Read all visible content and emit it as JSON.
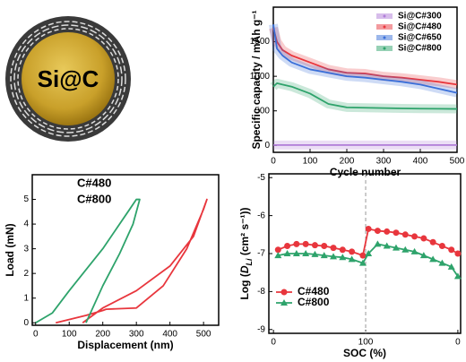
{
  "schematic": {
    "label": "Si@C"
  },
  "chart_data": [
    {
      "type": "line",
      "xlabel": "Cycle number",
      "ylabel": "Specific capacity / mAh g⁻¹",
      "xlim": [
        0,
        500
      ],
      "ylim": [
        -100,
        2000
      ],
      "xticks": [
        0,
        100,
        200,
        300,
        400,
        500
      ],
      "yticks": [
        0,
        500,
        1000,
        1500
      ],
      "legend": "upper right",
      "bands": true,
      "series": [
        {
          "name": "Si@C#300",
          "color": "#b07cd8",
          "x": [
            0,
            10,
            25,
            50,
            100,
            150,
            200,
            250,
            300,
            350,
            400,
            450,
            500
          ],
          "values": [
            5,
            5,
            5,
            5,
            5,
            5,
            5,
            5,
            5,
            5,
            5,
            5,
            5
          ]
        },
        {
          "name": "Si@C#480",
          "color": "#e8363d",
          "x": [
            0,
            10,
            25,
            50,
            100,
            150,
            200,
            250,
            300,
            350,
            400,
            450,
            500
          ],
          "values": [
            1700,
            1500,
            1380,
            1300,
            1200,
            1100,
            1050,
            1040,
            1000,
            980,
            950,
            920,
            880
          ]
        },
        {
          "name": "Si@C#650",
          "color": "#3a6fd8",
          "x": [
            0,
            10,
            25,
            50,
            100,
            150,
            200,
            250,
            300,
            350,
            400,
            450,
            500
          ],
          "values": [
            1750,
            1400,
            1300,
            1200,
            1100,
            1050,
            1000,
            980,
            950,
            920,
            880,
            820,
            760
          ]
        },
        {
          "name": "Si@C#800",
          "color": "#2ea36b",
          "x": [
            0,
            10,
            25,
            50,
            100,
            150,
            200,
            250,
            300,
            350,
            400,
            450,
            500
          ],
          "values": [
            850,
            900,
            880,
            850,
            750,
            600,
            550,
            545,
            540,
            535,
            532,
            530,
            528
          ]
        }
      ]
    },
    {
      "type": "line",
      "xlabel": "Displacement (nm)",
      "ylabel": "Load (mN)",
      "xlim": [
        -10,
        545
      ],
      "ylim": [
        -0.1,
        6
      ],
      "xticks": [
        0,
        100,
        200,
        300,
        400,
        500
      ],
      "yticks": [
        0,
        1,
        2,
        3,
        4,
        5
      ],
      "legend": "upper left",
      "legend_markers": false,
      "series": [
        {
          "name": "C#480",
          "color": "#e8363d",
          "x": [
            60,
            150,
            200,
            210,
            300,
            380,
            450,
            500,
            510,
            470,
            400,
            300,
            200,
            150,
            140
          ],
          "values": [
            0,
            0.3,
            0.5,
            0.55,
            0.6,
            1.5,
            3,
            4.6,
            5,
            3.5,
            2.3,
            1.3,
            0.6,
            0.1,
            0
          ]
        },
        {
          "name": "C#800",
          "color": "#2ea36b",
          "x": [
            0,
            50,
            100,
            200,
            280,
            300,
            310,
            290,
            250,
            200,
            160,
            150
          ],
          "values": [
            0,
            0.4,
            1.3,
            3,
            4.6,
            5,
            5,
            4,
            2.8,
            1.5,
            0.3,
            0
          ]
        }
      ]
    },
    {
      "type": "line",
      "xlabel": "SOC (%)",
      "ylabel_parts": [
        "Log (",
        "D",
        "Li",
        " (cm² s⁻¹))"
      ],
      "xlim": [
        -5,
        203
      ],
      "ylim": [
        -9.1,
        -4.9
      ],
      "xticks": [
        0,
        100,
        {
          "value": 200,
          "label": "0"
        }
      ],
      "yticks": [
        -9,
        -8,
        -7,
        -6,
        -5
      ],
      "vline": 100,
      "legend": "lower left",
      "series": [
        {
          "name": "C#480",
          "color": "#e8363d",
          "marker": "circle",
          "x": [
            5,
            15,
            25,
            35,
            45,
            55,
            65,
            75,
            85,
            97,
            103,
            113,
            123,
            133,
            143,
            153,
            163,
            173,
            183,
            193,
            200
          ],
          "values": [
            -6.9,
            -6.8,
            -6.75,
            -6.75,
            -6.78,
            -6.8,
            -6.85,
            -6.9,
            -6.95,
            -7.05,
            -6.35,
            -6.4,
            -6.42,
            -6.45,
            -6.5,
            -6.55,
            -6.6,
            -6.7,
            -6.8,
            -6.9,
            -7.0
          ]
        },
        {
          "name": "C#800",
          "color": "#2ea36b",
          "marker": "triangle",
          "x": [
            5,
            15,
            25,
            35,
            45,
            55,
            65,
            75,
            85,
            97,
            103,
            113,
            123,
            133,
            143,
            153,
            163,
            173,
            183,
            193,
            200
          ],
          "values": [
            -7.05,
            -7.0,
            -7.0,
            -7.0,
            -7.02,
            -7.05,
            -7.08,
            -7.1,
            -7.15,
            -7.25,
            -7.0,
            -6.75,
            -6.8,
            -6.85,
            -6.9,
            -6.95,
            -7.05,
            -7.15,
            -7.25,
            -7.35,
            -7.6
          ]
        }
      ]
    }
  ]
}
